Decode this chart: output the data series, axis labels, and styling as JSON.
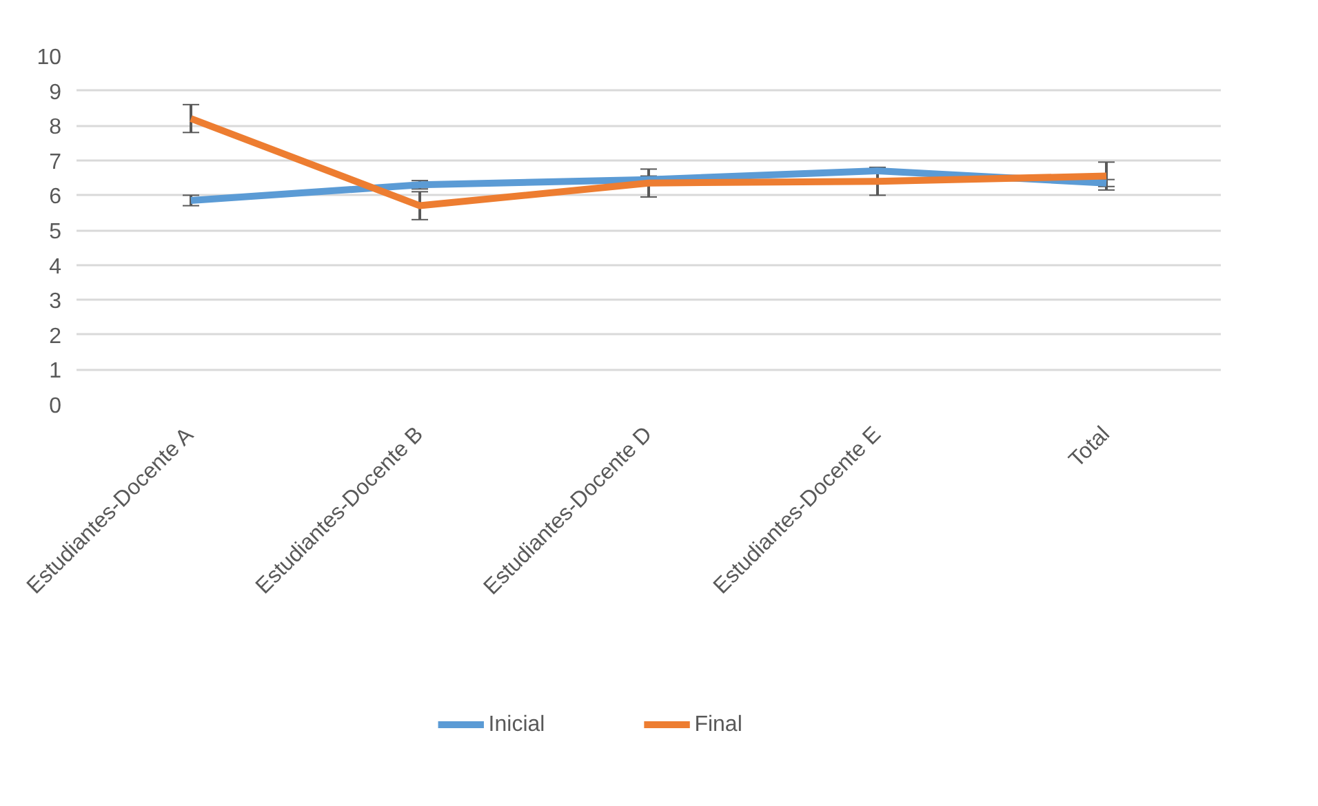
{
  "chart_data": {
    "type": "line",
    "categories": [
      "Estudiantes-Docente A",
      "Estudiantes-Docente B",
      "Estudiantes-Docente D",
      "Estudiantes-Docente E",
      "Total"
    ],
    "series": [
      {
        "name": "Inicial",
        "color": "#5b9bd5",
        "values": [
          5.85,
          6.3,
          6.45,
          6.7,
          6.35
        ],
        "errors": [
          0.15,
          0.12,
          0.1,
          0.08,
          0.1
        ]
      },
      {
        "name": "Final",
        "color": "#ed7d31",
        "values": [
          8.2,
          5.7,
          6.35,
          6.4,
          6.55
        ],
        "errors": [
          0.4,
          0.4,
          0.4,
          0.4,
          0.4
        ]
      }
    ],
    "ylim": [
      0,
      10
    ],
    "yticks": [
      0,
      1,
      2,
      3,
      4,
      5,
      6,
      7,
      8,
      9,
      10
    ],
    "grid": "y",
    "legend": "bottom",
    "marker": "none",
    "line_style": "solid"
  }
}
